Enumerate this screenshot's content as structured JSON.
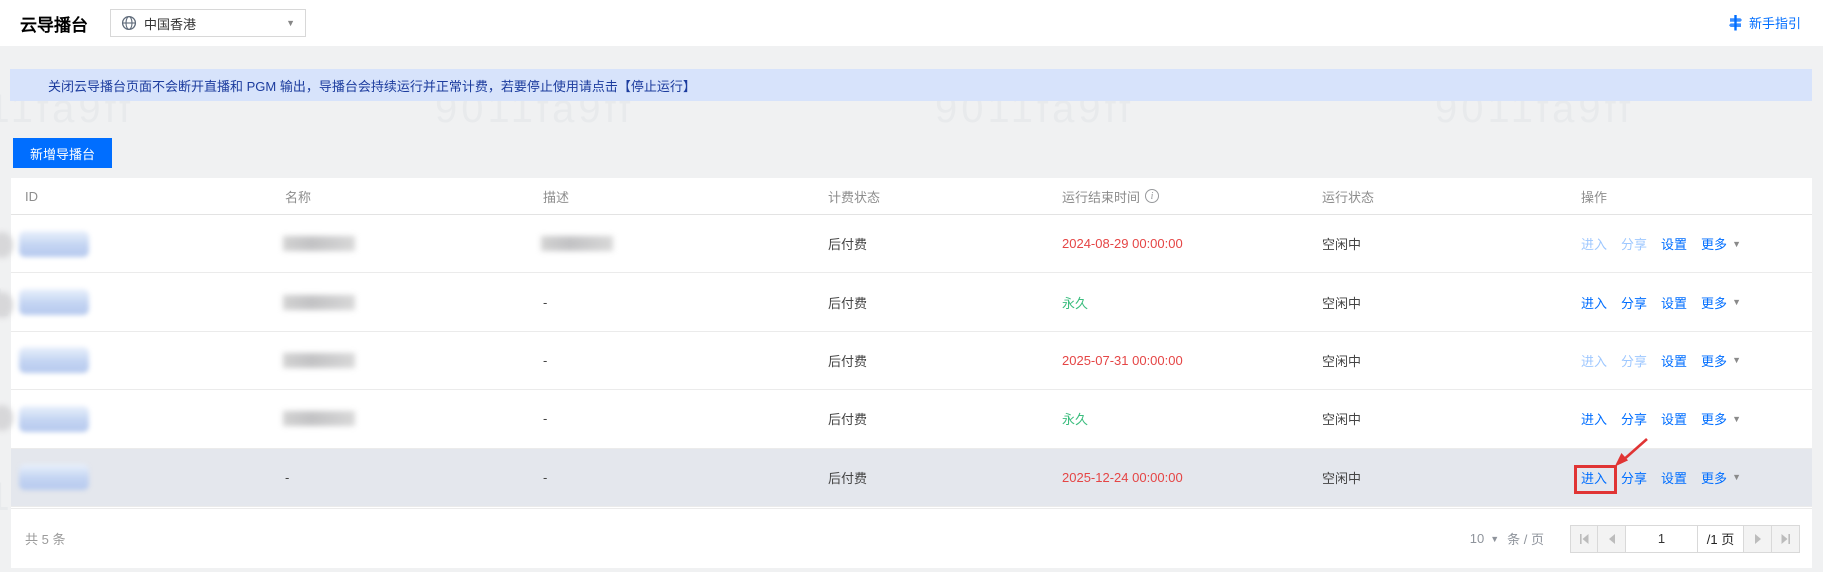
{
  "colors": {
    "accent_blue": "#006eff",
    "expiry_red": "#e54545",
    "permanent_green": "#3bbd7e",
    "banner_bg": "#d7e3fb",
    "banner_text": "#1c3c9e",
    "annotation_red": "#e03434",
    "highlight_row_bg": "#e4e7ed"
  },
  "header": {
    "title": "云导播台",
    "region_selector": {
      "label": "中国香港",
      "icon": "globe-icon",
      "caret": "▼"
    },
    "guide_link": {
      "label": "新手指引",
      "icon": "guide-signpost-icon"
    }
  },
  "banner": {
    "text": "关闭云导播台页面不会断开直播和 PGM 输出，导播台会持续运行并正常计费，若要停止使用请点击【停止运行】"
  },
  "toolbar": {
    "create_label": "新增导播台"
  },
  "watermark": {
    "text": "9011fa9ff"
  },
  "table": {
    "columns": [
      "ID",
      "名称",
      "描述",
      "计费状态",
      "运行结束时间",
      "运行状态",
      "操作"
    ],
    "action_labels": [
      "进入",
      "分享",
      "设置",
      "更多"
    ],
    "more_caret": "▼",
    "rows": [
      {
        "id_display": "blurred",
        "name_display": "blurred",
        "desc_display": "blurred",
        "billing": "后付费",
        "end_time": "2024-08-29 00:00:00",
        "end_time_kind": "expiry",
        "status": "空闲中",
        "disabled_actions": [
          "进入",
          "分享"
        ],
        "highlight": false,
        "annotated": false
      },
      {
        "id_display": "blurred",
        "name_display": "blurred",
        "desc_display": "-",
        "billing": "后付费",
        "end_time": "永久",
        "end_time_kind": "permanent",
        "status": "空闲中",
        "disabled_actions": [],
        "highlight": false,
        "annotated": false
      },
      {
        "id_display": "blurred",
        "name_display": "blurred",
        "desc_display": "-",
        "billing": "后付费",
        "end_time": "2025-07-31 00:00:00",
        "end_time_kind": "expiry",
        "status": "空闲中",
        "disabled_actions": [
          "进入",
          "分享"
        ],
        "highlight": false,
        "annotated": false
      },
      {
        "id_display": "blurred",
        "name_display": "blurred",
        "desc_display": "-",
        "billing": "后付费",
        "end_time": "永久",
        "end_time_kind": "permanent",
        "status": "空闲中",
        "disabled_actions": [],
        "highlight": false,
        "annotated": false
      },
      {
        "id_display": "blurred",
        "name_display": "-",
        "desc_display": "-",
        "billing": "后付费",
        "end_time": "2025-12-24 00:00:00",
        "end_time_kind": "expiry",
        "status": "空闲中",
        "disabled_actions": [],
        "highlight": true,
        "annotated": true
      }
    ]
  },
  "pagination": {
    "total_label": "共 5 条",
    "page_size": "10",
    "per_page_label": "条 / 页",
    "current_page": "1",
    "total_pages_label": "/1 页"
  }
}
